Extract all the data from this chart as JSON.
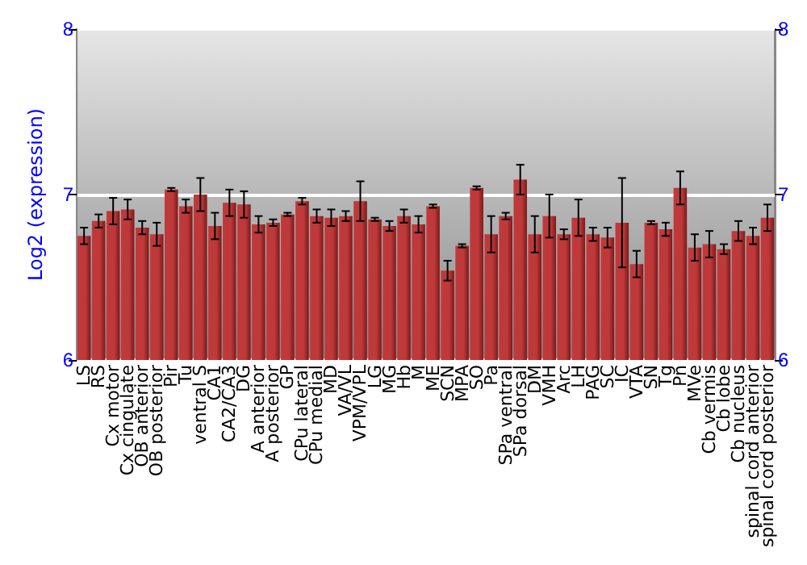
{
  "chart_data": {
    "type": "bar",
    "ylabel": "Log2 (expression)",
    "categories": [
      "LS",
      "RS",
      "Cx motor",
      "Cx cingulate",
      "OB anterior",
      "OB posterior",
      "Pir",
      "Tu",
      "ventral S",
      "CA1",
      "CA2/CA3",
      "DG",
      "A anterior",
      "A posterior",
      "GP",
      "CPu lateral",
      "CPu medial",
      "MD",
      "VA/VL",
      "VPM/VPL",
      "LG",
      "MG",
      "Hb",
      "M",
      "ME",
      "SCN",
      "MPA",
      "SO",
      "Pa",
      "SPa ventral",
      "SPa dorsal",
      "DM",
      "VMH",
      "Arc",
      "LH",
      "PAG",
      "SC",
      "IC",
      "VTA",
      "SN",
      "Tg",
      "Pn",
      "MVe",
      "Cb vermis",
      "Cb lobe",
      "Cb nucleus",
      "spinal cord anterior",
      "spinal cord posterior"
    ],
    "values": [
      6.75,
      6.84,
      6.9,
      6.91,
      6.8,
      6.76,
      7.03,
      6.93,
      7.0,
      6.81,
      6.95,
      6.94,
      6.82,
      6.83,
      6.88,
      6.96,
      6.87,
      6.86,
      6.87,
      6.96,
      6.85,
      6.81,
      6.87,
      6.82,
      6.93,
      6.54,
      6.69,
      7.04,
      6.76,
      6.87,
      7.09,
      6.76,
      6.87,
      6.76,
      6.86,
      6.76,
      6.74,
      6.83,
      6.58,
      6.83,
      6.79,
      7.04,
      6.68,
      6.7,
      6.67,
      6.78,
      6.75,
      6.86
    ],
    "errors": [
      0.05,
      0.04,
      0.08,
      0.06,
      0.04,
      0.07,
      0.01,
      0.04,
      0.1,
      0.08,
      0.08,
      0.08,
      0.05,
      0.02,
      0.01,
      0.02,
      0.04,
      0.05,
      0.03,
      0.12,
      0.01,
      0.03,
      0.04,
      0.05,
      0.01,
      0.06,
      0.01,
      0.01,
      0.11,
      0.02,
      0.09,
      0.11,
      0.13,
      0.03,
      0.11,
      0.04,
      0.06,
      0.27,
      0.08,
      0.01,
      0.04,
      0.1,
      0.08,
      0.08,
      0.03,
      0.06,
      0.05,
      0.08
    ],
    "color": "#c0393a",
    "ylim": [
      6,
      8
    ],
    "yticks": [
      6,
      7,
      8
    ],
    "y2lim": [
      6,
      8
    ],
    "y2ticks": [
      6,
      7,
      8
    ],
    "grid": "y"
  }
}
